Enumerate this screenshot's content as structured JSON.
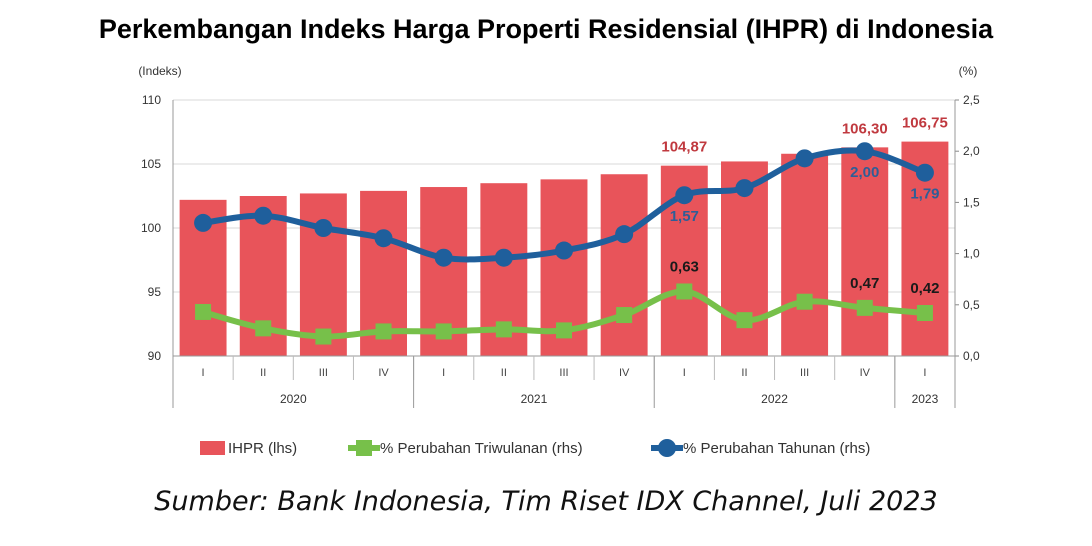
{
  "chart_data": {
    "type": "bar",
    "title": "Perkembangan Indeks Harga Properti Residensial (IHPR) di Indonesia",
    "left_axis_unit": "(Indeks)",
    "right_axis_unit": "(%)",
    "ylim_left": [
      90,
      110
    ],
    "ylim_right": [
      0,
      2.5
    ],
    "yticks_left": [
      "110",
      "105",
      "100",
      "95",
      "90"
    ],
    "yticks_right": [
      "2,5",
      "2,0",
      "1,5",
      "1,0",
      "0,5",
      "0,0"
    ],
    "categories": [
      "I",
      "II",
      "III",
      "IV",
      "I",
      "II",
      "III",
      "IV",
      "I",
      "II",
      "III",
      "IV",
      "I"
    ],
    "years": [
      {
        "label": "2020",
        "count": 4
      },
      {
        "label": "2021",
        "count": 4
      },
      {
        "label": "2022",
        "count": 4
      },
      {
        "label": "2023",
        "count": 1
      }
    ],
    "grid": true,
    "legend_position": "bottom",
    "series": [
      {
        "name": "IHPR (lhs)",
        "kind": "bar",
        "axis": "left",
        "color": "#e8545a",
        "values": [
          102.2,
          102.5,
          102.7,
          102.9,
          103.2,
          103.5,
          103.8,
          104.2,
          104.87,
          105.2,
          105.8,
          106.3,
          106.75
        ]
      },
      {
        "name": "% Perubahan Triwulanan (rhs)",
        "kind": "line",
        "axis": "right",
        "color": "#77c04a",
        "values": [
          0.43,
          0.27,
          0.19,
          0.24,
          0.24,
          0.26,
          0.25,
          0.4,
          0.63,
          0.35,
          0.53,
          0.47,
          0.42
        ]
      },
      {
        "name": "% Perubahan Tahunan (rhs)",
        "kind": "line",
        "axis": "right",
        "color": "#1f5f9c",
        "values": [
          1.3,
          1.37,
          1.25,
          1.15,
          0.96,
          0.96,
          1.03,
          1.19,
          1.57,
          1.64,
          1.93,
          2.0,
          1.79
        ]
      }
    ],
    "data_labels": [
      {
        "series": 0,
        "index": 8,
        "text": "104,87"
      },
      {
        "series": 0,
        "index": 11,
        "text": "106,30"
      },
      {
        "series": 0,
        "index": 12,
        "text": "106,75"
      },
      {
        "series": 2,
        "index": 8,
        "text": "1,57"
      },
      {
        "series": 2,
        "index": 11,
        "text": "2,00"
      },
      {
        "series": 2,
        "index": 12,
        "text": "1,79"
      },
      {
        "series": 1,
        "index": 8,
        "text": "0,63"
      },
      {
        "series": 1,
        "index": 11,
        "text": "0,47"
      },
      {
        "series": 1,
        "index": 12,
        "text": "0,42"
      }
    ]
  },
  "source": "Sumber: Bank Indonesia, Tim Riset IDX Channel, Juli 2023"
}
